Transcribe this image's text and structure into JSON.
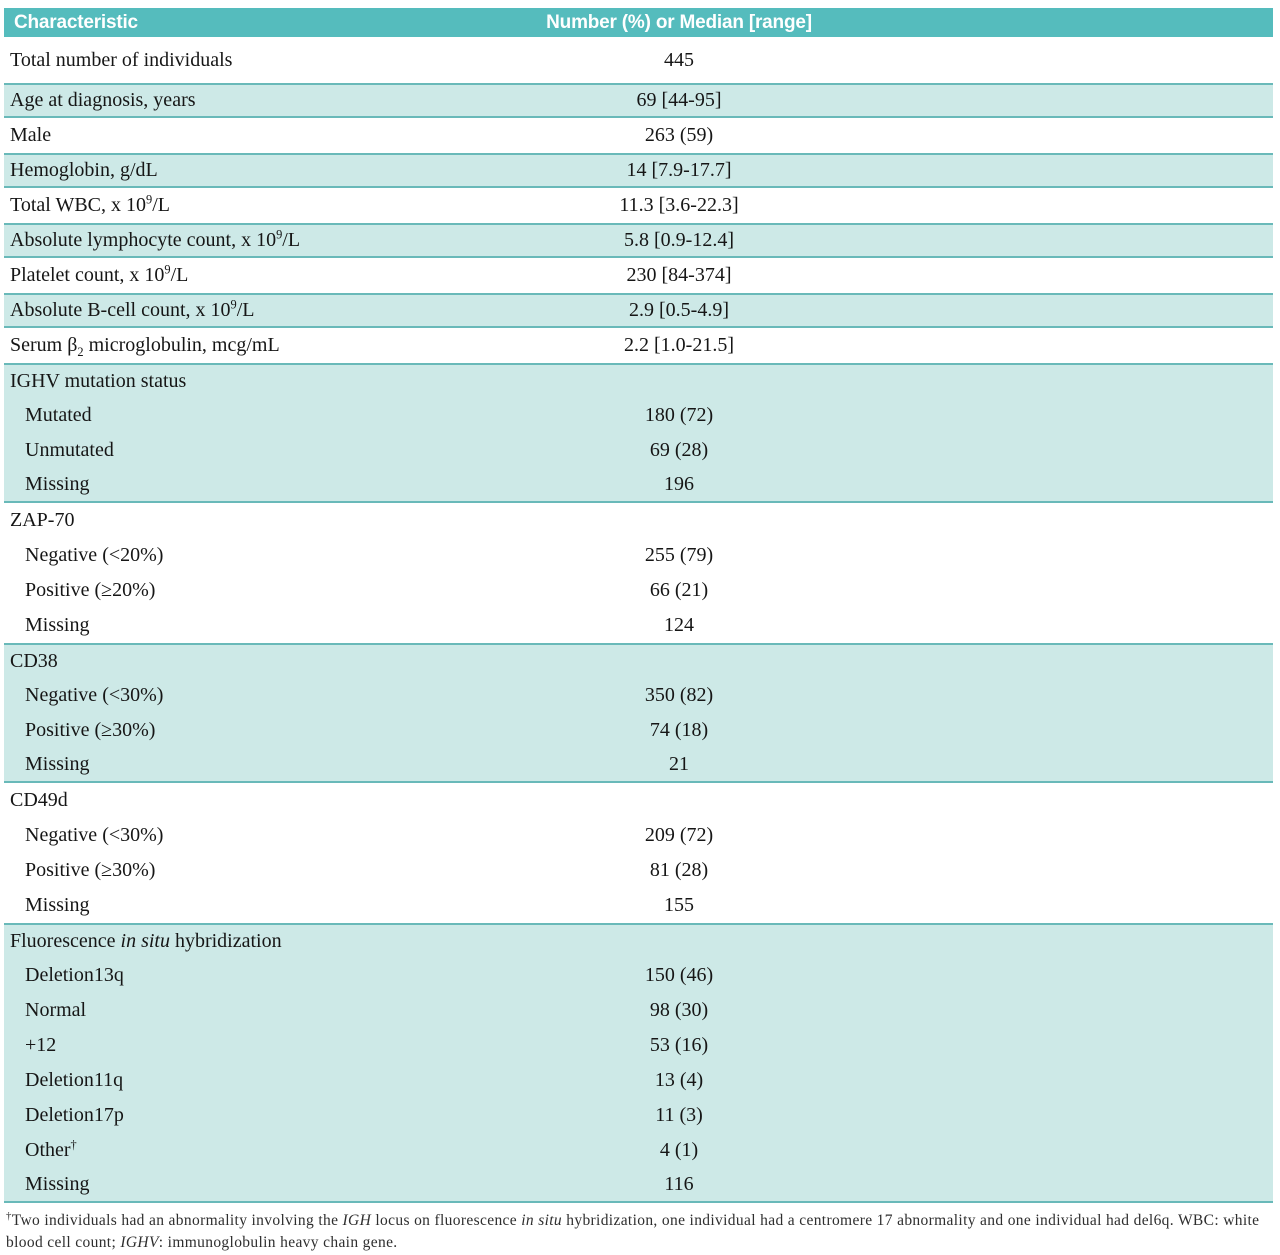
{
  "colors": {
    "header_teal": "#55bcbd",
    "row_shade": "#cde9e7",
    "row_border": "#69b9b9"
  },
  "table": {
    "columns": [
      "Characteristic",
      "Number (%) or Median [range]"
    ],
    "rows": [
      {
        "label": "Total number of individuals",
        "value": "445",
        "shaded": false,
        "indent": false
      },
      {
        "label": "Age at diagnosis, years",
        "value": "69 [44-95]",
        "shaded": true,
        "indent": false
      },
      {
        "label": "Male",
        "value": "263 (59)",
        "shaded": false,
        "indent": false
      },
      {
        "label": "Hemoglobin, g/dL",
        "value": "14 [7.9-17.7]",
        "shaded": true,
        "indent": false
      },
      {
        "label": "Total WBC, x 10^{9}/L",
        "value": "11.3 [3.6-22.3]",
        "shaded": false,
        "indent": false
      },
      {
        "label": "Absolute lymphocyte count, x 10^{9}/L",
        "value": "5.8 [0.9-12.4]",
        "shaded": true,
        "indent": false
      },
      {
        "label": "Platelet count, x 10^{9}/L",
        "value": "230 [84-374]",
        "shaded": false,
        "indent": false
      },
      {
        "label": "Absolute B-cell count, x 10^{9}/L",
        "value": "2.9 [0.5-4.9]",
        "shaded": true,
        "indent": false
      },
      {
        "label": "Serum β_{2} microglobulin, mcg/mL",
        "value": "2.2 [1.0-21.5]",
        "shaded": false,
        "indent": false
      },
      {
        "label": "IGHV mutation status",
        "value": "",
        "shaded": true,
        "indent": false
      },
      {
        "label": "Mutated",
        "value": "180 (72)",
        "shaded": true,
        "indent": true
      },
      {
        "label": "Unmutated",
        "value": "69 (28)",
        "shaded": true,
        "indent": true
      },
      {
        "label": "Missing",
        "value": "196",
        "shaded": true,
        "indent": true
      },
      {
        "label": "ZAP-70",
        "value": "",
        "shaded": false,
        "indent": false
      },
      {
        "label": "Negative (<20%)",
        "value": "255 (79)",
        "shaded": false,
        "indent": true
      },
      {
        "label": "Positive (≥20%)",
        "value": "66 (21)",
        "shaded": false,
        "indent": true
      },
      {
        "label": "Missing",
        "value": "124",
        "shaded": false,
        "indent": true
      },
      {
        "label": "CD38",
        "value": "",
        "shaded": true,
        "indent": false
      },
      {
        "label": "Negative (<30%)",
        "value": "350 (82)",
        "shaded": true,
        "indent": true
      },
      {
        "label": "Positive (≥30%)",
        "value": "74 (18)",
        "shaded": true,
        "indent": true
      },
      {
        "label": "Missing",
        "value": "21",
        "shaded": true,
        "indent": true
      },
      {
        "label": "CD49d",
        "value": "",
        "shaded": false,
        "indent": false
      },
      {
        "label": "Negative (<30%)",
        "value": "209 (72)",
        "shaded": false,
        "indent": true
      },
      {
        "label": "Positive (≥30%)",
        "value": "81 (28)",
        "shaded": false,
        "indent": true
      },
      {
        "label": "Missing",
        "value": "155",
        "shaded": false,
        "indent": true
      },
      {
        "label": "Fluorescence *in situ* hybridization",
        "value": "",
        "shaded": true,
        "indent": false
      },
      {
        "label": "Deletion13q",
        "value": "150 (46)",
        "shaded": true,
        "indent": true
      },
      {
        "label": "Normal",
        "value": "98 (30)",
        "shaded": true,
        "indent": true
      },
      {
        "label": "+12",
        "value": "53 (16)",
        "shaded": true,
        "indent": true
      },
      {
        "label": "Deletion11q",
        "value": "13 (4)",
        "shaded": true,
        "indent": true
      },
      {
        "label": "Deletion17p",
        "value": "11 (3)",
        "shaded": true,
        "indent": true
      },
      {
        "label": "Other^{†}",
        "value": "4 (1)",
        "shaded": true,
        "indent": true
      },
      {
        "label": "Missing",
        "value": "116",
        "shaded": true,
        "indent": true
      }
    ]
  },
  "footnote": "^{†}Two individuals had an abnormality involving the *IGH* locus on fluorescence *in situ* hybridization, one individual had a centromere 17 abnormality and one individual had del6q. WBC: white blood cell count; *IGHV*: immunoglobulin heavy chain gene."
}
